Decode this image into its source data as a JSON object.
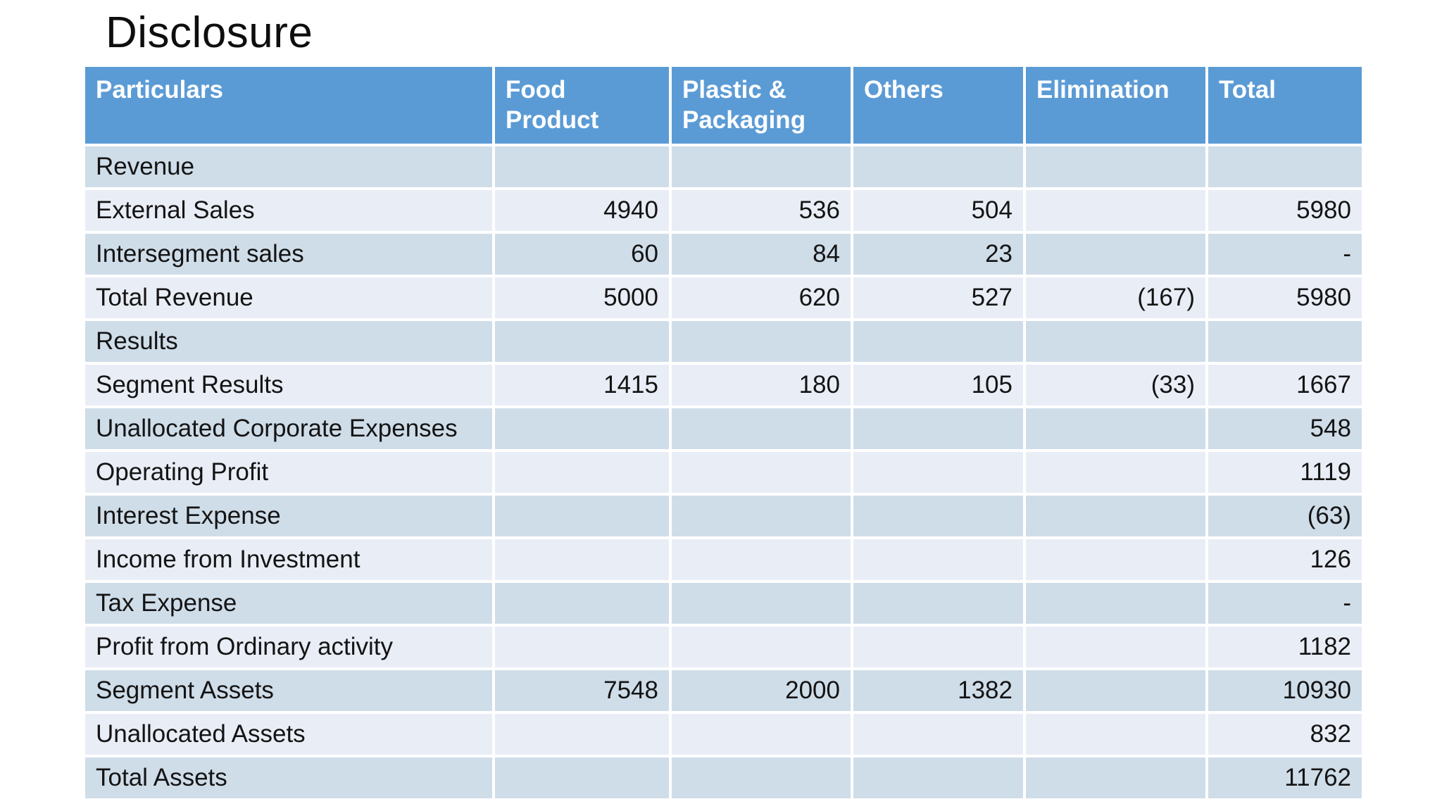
{
  "slide": {
    "title": "Disclosure"
  },
  "colors": {
    "header_bg": "#5b9bd5",
    "header_text": "#ffffff",
    "band_dark": "#cfdde9",
    "band_light": "#e9edf6",
    "body_text": "#141414",
    "background": "#ffffff"
  },
  "table": {
    "columns": [
      {
        "label": "Particulars"
      },
      {
        "label": "Food Product"
      },
      {
        "label": "Plastic & Packaging"
      },
      {
        "label": "Others"
      },
      {
        "label": "Elimination"
      },
      {
        "label": "Total"
      }
    ],
    "rows": [
      {
        "label": "Revenue",
        "values": [
          "",
          "",
          "",
          "",
          ""
        ]
      },
      {
        "label": "External Sales",
        "values": [
          "4940",
          "536",
          "504",
          "",
          "5980"
        ]
      },
      {
        "label": "Intersegment sales",
        "values": [
          "60",
          "84",
          "23",
          "",
          "-"
        ]
      },
      {
        "label": "Total Revenue",
        "values": [
          "5000",
          "620",
          "527",
          "(167)",
          "5980"
        ]
      },
      {
        "label": "Results",
        "values": [
          "",
          "",
          "",
          "",
          ""
        ]
      },
      {
        "label": "Segment Results",
        "values": [
          "1415",
          "180",
          "105",
          "(33)",
          "1667"
        ]
      },
      {
        "label": "Unallocated Corporate Expenses",
        "values": [
          "",
          "",
          "",
          "",
          "548"
        ]
      },
      {
        "label": "Operating Profit",
        "values": [
          "",
          "",
          "",
          "",
          "1119"
        ]
      },
      {
        "label": "Interest Expense",
        "values": [
          "",
          "",
          "",
          "",
          "(63)"
        ]
      },
      {
        "label": "Income from Investment",
        "values": [
          "",
          "",
          "",
          "",
          "126"
        ]
      },
      {
        "label": "Tax Expense",
        "values": [
          "",
          "",
          "",
          "",
          "-"
        ]
      },
      {
        "label": "Profit from Ordinary activity",
        "values": [
          "",
          "",
          "",
          "",
          "1182"
        ]
      },
      {
        "label": "Segment Assets",
        "values": [
          "7548",
          "2000",
          "1382",
          "",
          "10930"
        ]
      },
      {
        "label": "Unallocated Assets",
        "values": [
          "",
          "",
          "",
          "",
          "832"
        ]
      },
      {
        "label": "Total Assets",
        "values": [
          "",
          "",
          "",
          "",
          "11762"
        ]
      }
    ]
  }
}
